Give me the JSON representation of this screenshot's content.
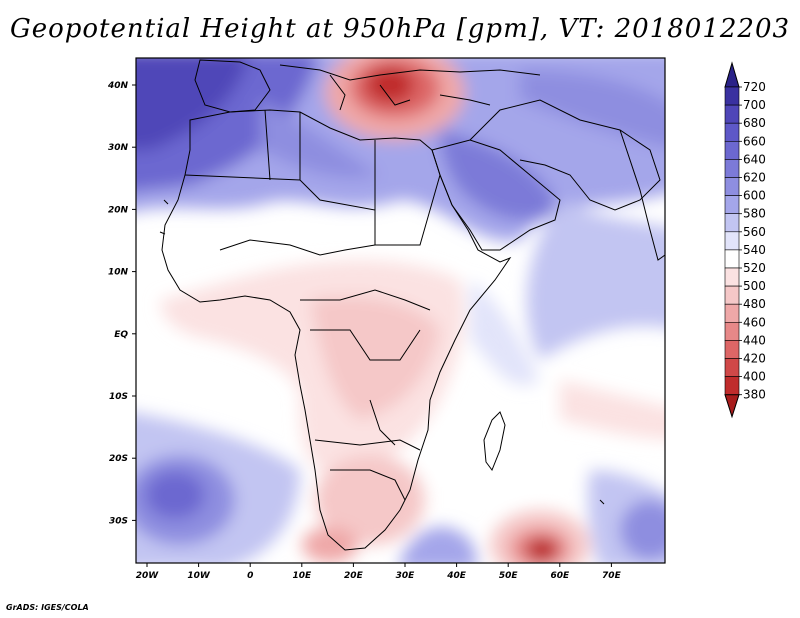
{
  "title": "Geopotential Height at 950hPa [gpm], VT: 2018012203",
  "footer": "GrADS: IGES/COLA",
  "map": {
    "lon_labels": [
      "20W",
      "10W",
      "0",
      "10E",
      "20E",
      "30E",
      "40E",
      "50E",
      "60E",
      "70E"
    ],
    "lat_labels": [
      "40N",
      "30N",
      "20N",
      "10N",
      "EQ",
      "10S",
      "20S",
      "30S"
    ]
  },
  "colorbar": {
    "levels": [
      "720",
      "700",
      "680",
      "660",
      "640",
      "620",
      "600",
      "580",
      "560",
      "540",
      "520",
      "500",
      "480",
      "460",
      "440",
      "420",
      "400",
      "380"
    ],
    "colors": [
      "#3a31a0",
      "#4f46b8",
      "#5e58c8",
      "#6c68d0",
      "#7c7ad8",
      "#8e8ee0",
      "#a4a6ea",
      "#c2c5f2",
      "#e2e4fa",
      "#ffffff",
      "#fbe2e2",
      "#f5c8c8",
      "#efa8a8",
      "#e78888",
      "#dd6666",
      "#d04848",
      "#c02c2c",
      "#a81c1c"
    ]
  },
  "colors": {
    "blue_deep": "#3f37a8",
    "blue_mid": "#7c7ad8",
    "blue_light": "#c2c5f2",
    "red_deep": "#b82222",
    "red_light": "#f5c8c8",
    "border": "#000000"
  }
}
